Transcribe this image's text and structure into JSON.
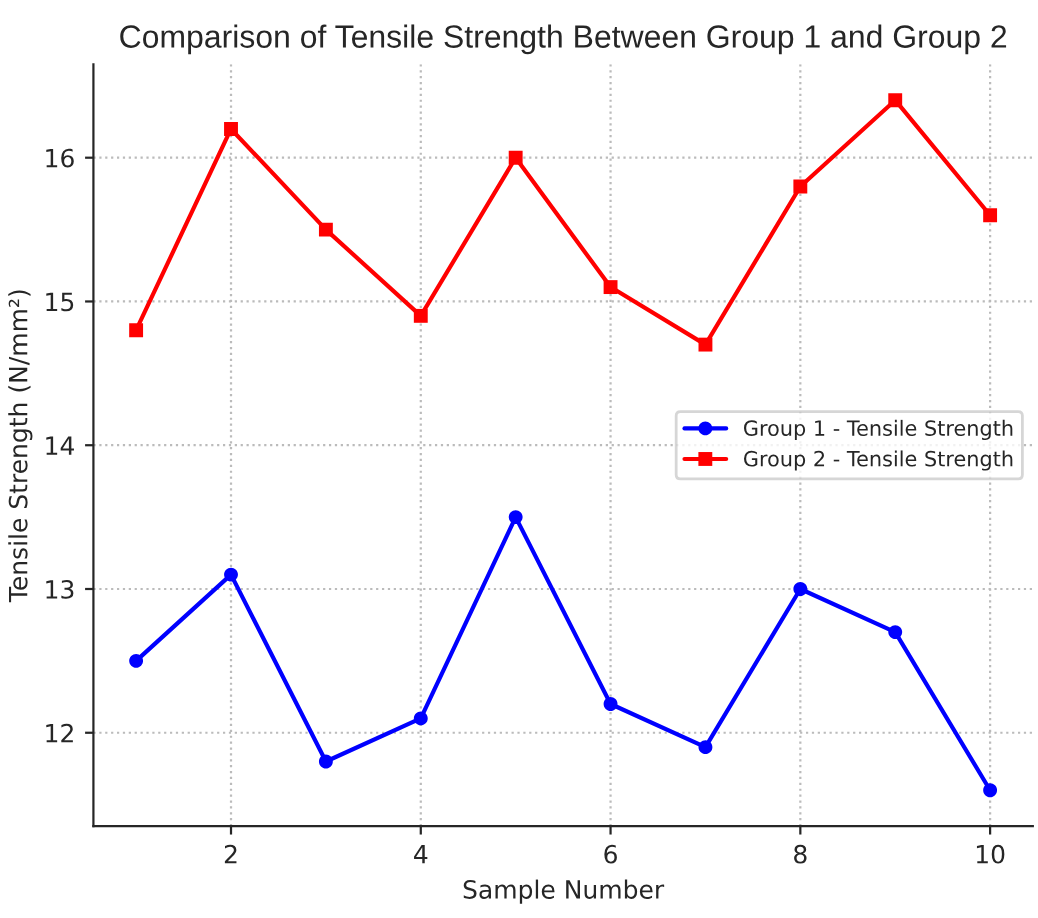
{
  "chart_data": {
    "type": "line",
    "title": "Comparison of Tensile Strength Between Group 1 and Group 2",
    "xlabel": "Sample Number",
    "ylabel": "Tensile Strength (N/mm²)",
    "x": [
      1,
      2,
      3,
      4,
      5,
      6,
      7,
      8,
      9,
      10
    ],
    "series": [
      {
        "name": "Group 1 - Tensile Strength",
        "color": "#0000ff",
        "marker": "circle",
        "values": [
          12.5,
          13.1,
          11.8,
          12.1,
          13.5,
          12.2,
          11.9,
          13.0,
          12.7,
          11.6
        ]
      },
      {
        "name": "Group 2 - Tensile Strength",
        "color": "#ff0000",
        "marker": "square",
        "values": [
          14.8,
          16.2,
          15.5,
          14.9,
          16.0,
          15.1,
          14.7,
          15.8,
          16.4,
          15.6
        ]
      }
    ],
    "xlim": [
      0.55,
      10.45
    ],
    "xticks": [
      2,
      4,
      6,
      8,
      10
    ],
    "ylim": [
      11.35,
      16.65
    ],
    "yticks": [
      12,
      13,
      14,
      15,
      16
    ],
    "grid": true,
    "legend": "right",
    "line_style": "solid"
  }
}
